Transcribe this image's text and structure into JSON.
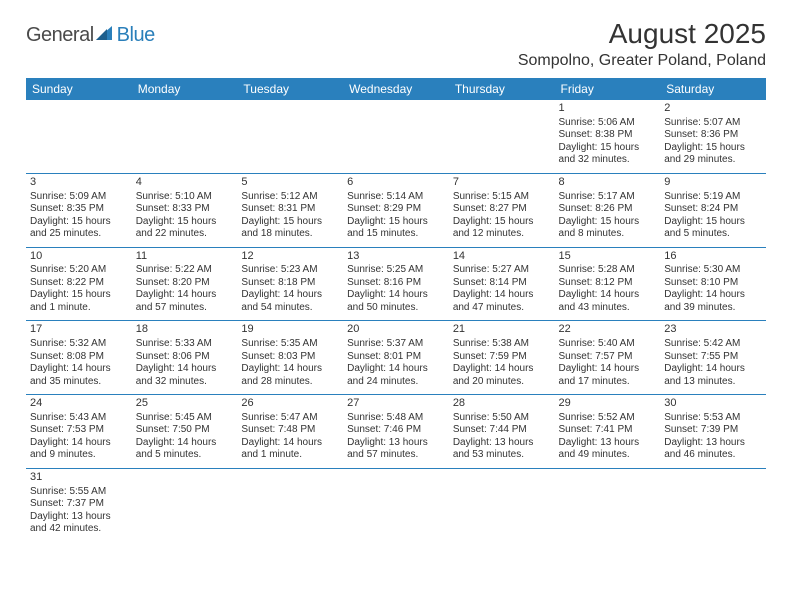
{
  "logo": {
    "a": "General",
    "b": "Blue"
  },
  "title": "August 2025",
  "location": "Sompolno, Greater Poland, Poland",
  "colors": {
    "header_bg": "#2a80bd",
    "header_fg": "#ffffff",
    "rule": "#2a80bd",
    "text": "#333333",
    "logo_blue": "#2a7fba",
    "logo_gray": "#4a4a4a",
    "page_bg": "#ffffff"
  },
  "dayHeaders": [
    "Sunday",
    "Monday",
    "Tuesday",
    "Wednesday",
    "Thursday",
    "Friday",
    "Saturday"
  ],
  "weeks": [
    [
      null,
      null,
      null,
      null,
      null,
      {
        "n": "1",
        "sr": "5:06 AM",
        "ss": "8:38 PM",
        "dl": "15 hours and 32 minutes."
      },
      {
        "n": "2",
        "sr": "5:07 AM",
        "ss": "8:36 PM",
        "dl": "15 hours and 29 minutes."
      }
    ],
    [
      {
        "n": "3",
        "sr": "5:09 AM",
        "ss": "8:35 PM",
        "dl": "15 hours and 25 minutes."
      },
      {
        "n": "4",
        "sr": "5:10 AM",
        "ss": "8:33 PM",
        "dl": "15 hours and 22 minutes."
      },
      {
        "n": "5",
        "sr": "5:12 AM",
        "ss": "8:31 PM",
        "dl": "15 hours and 18 minutes."
      },
      {
        "n": "6",
        "sr": "5:14 AM",
        "ss": "8:29 PM",
        "dl": "15 hours and 15 minutes."
      },
      {
        "n": "7",
        "sr": "5:15 AM",
        "ss": "8:27 PM",
        "dl": "15 hours and 12 minutes."
      },
      {
        "n": "8",
        "sr": "5:17 AM",
        "ss": "8:26 PM",
        "dl": "15 hours and 8 minutes."
      },
      {
        "n": "9",
        "sr": "5:19 AM",
        "ss": "8:24 PM",
        "dl": "15 hours and 5 minutes."
      }
    ],
    [
      {
        "n": "10",
        "sr": "5:20 AM",
        "ss": "8:22 PM",
        "dl": "15 hours and 1 minute."
      },
      {
        "n": "11",
        "sr": "5:22 AM",
        "ss": "8:20 PM",
        "dl": "14 hours and 57 minutes."
      },
      {
        "n": "12",
        "sr": "5:23 AM",
        "ss": "8:18 PM",
        "dl": "14 hours and 54 minutes."
      },
      {
        "n": "13",
        "sr": "5:25 AM",
        "ss": "8:16 PM",
        "dl": "14 hours and 50 minutes."
      },
      {
        "n": "14",
        "sr": "5:27 AM",
        "ss": "8:14 PM",
        "dl": "14 hours and 47 minutes."
      },
      {
        "n": "15",
        "sr": "5:28 AM",
        "ss": "8:12 PM",
        "dl": "14 hours and 43 minutes."
      },
      {
        "n": "16",
        "sr": "5:30 AM",
        "ss": "8:10 PM",
        "dl": "14 hours and 39 minutes."
      }
    ],
    [
      {
        "n": "17",
        "sr": "5:32 AM",
        "ss": "8:08 PM",
        "dl": "14 hours and 35 minutes."
      },
      {
        "n": "18",
        "sr": "5:33 AM",
        "ss": "8:06 PM",
        "dl": "14 hours and 32 minutes."
      },
      {
        "n": "19",
        "sr": "5:35 AM",
        "ss": "8:03 PM",
        "dl": "14 hours and 28 minutes."
      },
      {
        "n": "20",
        "sr": "5:37 AM",
        "ss": "8:01 PM",
        "dl": "14 hours and 24 minutes."
      },
      {
        "n": "21",
        "sr": "5:38 AM",
        "ss": "7:59 PM",
        "dl": "14 hours and 20 minutes."
      },
      {
        "n": "22",
        "sr": "5:40 AM",
        "ss": "7:57 PM",
        "dl": "14 hours and 17 minutes."
      },
      {
        "n": "23",
        "sr": "5:42 AM",
        "ss": "7:55 PM",
        "dl": "14 hours and 13 minutes."
      }
    ],
    [
      {
        "n": "24",
        "sr": "5:43 AM",
        "ss": "7:53 PM",
        "dl": "14 hours and 9 minutes."
      },
      {
        "n": "25",
        "sr": "5:45 AM",
        "ss": "7:50 PM",
        "dl": "14 hours and 5 minutes."
      },
      {
        "n": "26",
        "sr": "5:47 AM",
        "ss": "7:48 PM",
        "dl": "14 hours and 1 minute."
      },
      {
        "n": "27",
        "sr": "5:48 AM",
        "ss": "7:46 PM",
        "dl": "13 hours and 57 minutes."
      },
      {
        "n": "28",
        "sr": "5:50 AM",
        "ss": "7:44 PM",
        "dl": "13 hours and 53 minutes."
      },
      {
        "n": "29",
        "sr": "5:52 AM",
        "ss": "7:41 PM",
        "dl": "13 hours and 49 minutes."
      },
      {
        "n": "30",
        "sr": "5:53 AM",
        "ss": "7:39 PM",
        "dl": "13 hours and 46 minutes."
      }
    ],
    [
      {
        "n": "31",
        "sr": "5:55 AM",
        "ss": "7:37 PM",
        "dl": "13 hours and 42 minutes."
      },
      null,
      null,
      null,
      null,
      null,
      null
    ]
  ],
  "labels": {
    "sunrise": "Sunrise: ",
    "sunset": "Sunset: ",
    "daylight": "Daylight: "
  }
}
